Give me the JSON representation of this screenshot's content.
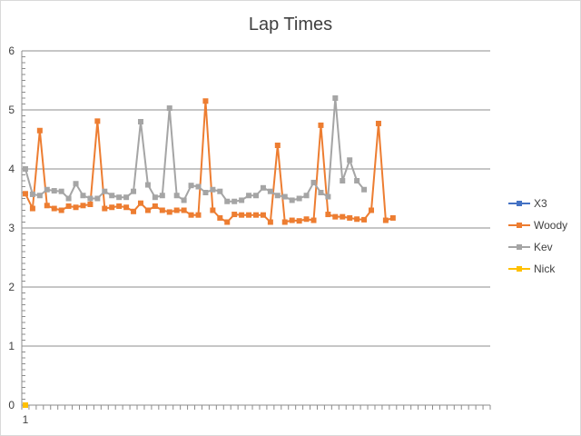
{
  "chart_data": {
    "type": "line",
    "title": "Lap Times",
    "xlabel": "",
    "ylabel": "",
    "ylim": [
      0,
      6
    ],
    "yticks": [
      0,
      1,
      2,
      3,
      4,
      5,
      6
    ],
    "x_tick_labels": [
      "1"
    ],
    "grid": "horizontal",
    "legend_position": "right",
    "x_count": 65,
    "series": [
      {
        "name": "X3",
        "color": "#4472c4",
        "values": [
          0
        ]
      },
      {
        "name": "Woody",
        "color": "#ed7d31",
        "values": [
          3.58,
          3.33,
          4.65,
          3.38,
          3.33,
          3.3,
          3.37,
          3.35,
          3.38,
          3.4,
          4.81,
          3.33,
          3.35,
          3.37,
          3.35,
          3.28,
          3.42,
          3.3,
          3.37,
          3.3,
          3.27,
          3.3,
          3.3,
          3.22,
          3.22,
          5.15,
          3.3,
          3.17,
          3.1,
          3.23,
          3.22,
          3.22,
          3.22,
          3.22,
          3.1,
          4.4,
          3.1,
          3.13,
          3.12,
          3.15,
          3.13,
          4.74,
          3.23,
          3.19,
          3.19,
          3.17,
          3.15,
          3.14,
          3.3,
          4.77,
          3.13,
          3.17
        ]
      },
      {
        "name": "Kev",
        "color": "#a5a5a5",
        "values": [
          4.0,
          3.57,
          3.55,
          3.65,
          3.63,
          3.62,
          3.5,
          3.75,
          3.55,
          3.5,
          3.5,
          3.62,
          3.55,
          3.52,
          3.52,
          3.62,
          4.8,
          3.73,
          3.52,
          3.55,
          5.03,
          3.55,
          3.47,
          3.72,
          3.7,
          3.6,
          3.65,
          3.62,
          3.45,
          3.45,
          3.47,
          3.55,
          3.55,
          3.68,
          3.62,
          3.55,
          3.53,
          3.47,
          3.5,
          3.55,
          3.77,
          3.6,
          3.53,
          5.2,
          3.8,
          4.15,
          3.8,
          3.65
        ]
      },
      {
        "name": "Nick",
        "color": "#ffc000",
        "values": [
          0
        ]
      }
    ]
  }
}
